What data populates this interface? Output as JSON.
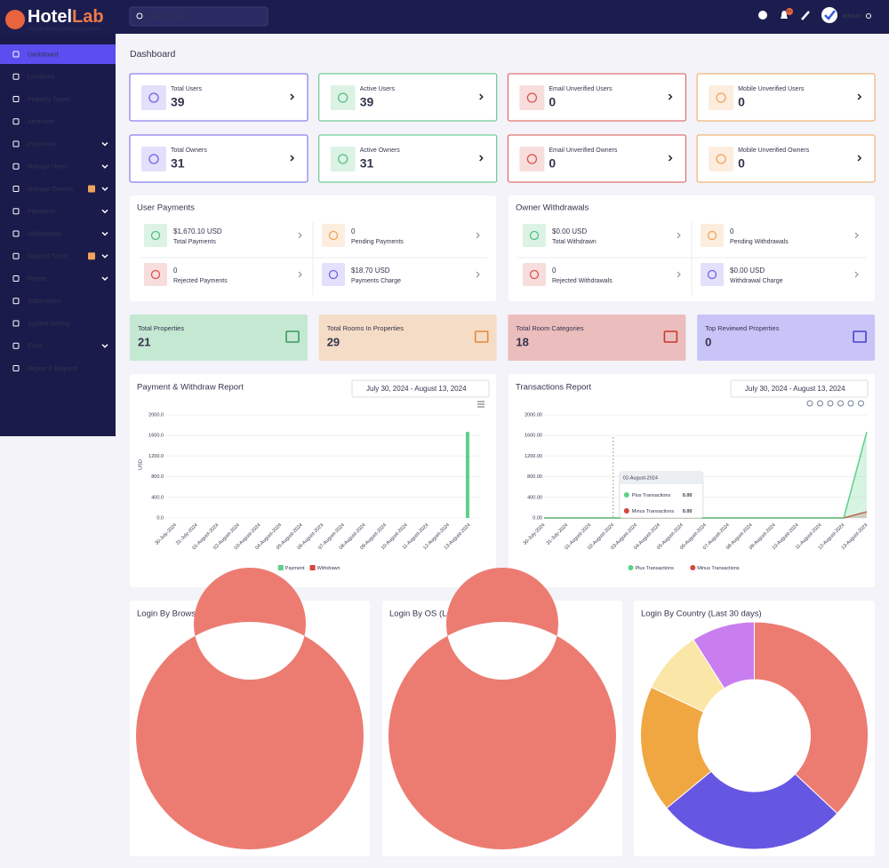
{
  "brand": {
    "name": [
      "Hotel",
      "Lab"
    ],
    "tagline": "ONLINE HOTEL BOOKING PLATFORM"
  },
  "header": {
    "search_placeholder": "Search here...",
    "notification_badge": "9+",
    "user": "admin"
  },
  "sidebar": [
    {
      "label": "Dashboard",
      "active": true
    },
    {
      "label": "Locations"
    },
    {
      "label": "Property Types"
    },
    {
      "label": "Amenities"
    },
    {
      "label": "Properties",
      "submenu": true
    },
    {
      "label": "Manage Users",
      "submenu": true
    },
    {
      "label": "Manage Owners",
      "submenu": true,
      "badge": true
    },
    {
      "label": "Payments",
      "submenu": true
    },
    {
      "label": "Withdrawals",
      "submenu": true
    },
    {
      "label": "Support Ticket",
      "submenu": true,
      "badge": true
    },
    {
      "label": "Report",
      "submenu": true
    },
    {
      "label": "Subscribers"
    },
    {
      "label": "System Setting"
    },
    {
      "label": "Extra",
      "submenu": true
    },
    {
      "label": "Report & Request"
    }
  ],
  "page_title": "Dashboard",
  "stat_cards": [
    {
      "label": "Total Users",
      "value": 39,
      "color": "#6f63e8"
    },
    {
      "label": "Active Users",
      "value": 39,
      "color": "#52c07f"
    },
    {
      "label": "Email Unverified Users",
      "value": 0,
      "color": "#d9534f"
    },
    {
      "label": "Mobile Unverified Users",
      "value": 0,
      "color": "#f0a35a"
    },
    {
      "label": "Total Owners",
      "value": 31,
      "color": "#6f63e8"
    },
    {
      "label": "Active Owners",
      "value": 31,
      "color": "#52c07f"
    },
    {
      "label": "Email Unverified Owners",
      "value": 0,
      "color": "#d9534f"
    },
    {
      "label": "Mobile Unverified Owners",
      "value": 0,
      "color": "#f0a35a"
    }
  ],
  "payment_panels": [
    {
      "title": "User Payments",
      "items": [
        {
          "value": "$1,670.10 USD",
          "label": "Total Payments",
          "color": "#52c07f"
        },
        {
          "value": 0,
          "label": "Pending Payments",
          "color": "#f0a35a"
        },
        {
          "value": 0,
          "label": "Rejected Payments",
          "color": "#d9534f"
        },
        {
          "value": "$18.70 USD",
          "label": "Payments Charge",
          "color": "#6f63e8"
        }
      ]
    },
    {
      "title": "Owner Withdrawals",
      "items": [
        {
          "value": "$0.00 USD",
          "label": "Total Withdrawn",
          "color": "#52c07f"
        },
        {
          "value": 0,
          "label": "Pending Withdrawals",
          "color": "#f0a35a"
        },
        {
          "value": 0,
          "label": "Rejected Withdrawals",
          "color": "#d9534f"
        },
        {
          "value": "$0.00 USD",
          "label": "Withdrawal Charge",
          "color": "#6f63e8"
        }
      ]
    }
  ],
  "property_cards": [
    {
      "label": "Total Properties",
      "value": 21,
      "bg": "#c4e8d1",
      "color": "#3c9a5f"
    },
    {
      "label": "Total Rooms In Properties",
      "value": 29,
      "bg": "#f5dcc6",
      "color": "#e8883a"
    },
    {
      "label": "Total Room Categories",
      "value": 18,
      "bg": "#ecbdbd",
      "color": "#c7372f"
    },
    {
      "label": "Top Reviewed Properties",
      "value": 0,
      "bg": "#c9c4f8",
      "color": "#4b3ec9"
    }
  ],
  "chart_data": [
    {
      "type": "bar",
      "title": "Payment & Withdraw Report",
      "date_range": "July 30, 2024 - August 13, 2024",
      "y_label": "USD",
      "categories": [
        "30-July-2024",
        "31-July-2024",
        "01-August-2024",
        "02-August-2024",
        "03-August-2024",
        "04-August-2024",
        "05-August-2024",
        "06-August-2024",
        "07-August-2024",
        "08-August-2024",
        "09-August-2024",
        "10-August-2024",
        "11-August-2024",
        "12-August-2024",
        "13-August-2024"
      ],
      "series": [
        {
          "name": "Payment",
          "color": "#5ed08a",
          "values": [
            0,
            0,
            0,
            0,
            0,
            0,
            0,
            0,
            0,
            0,
            0,
            0,
            0,
            0,
            1670.1
          ]
        },
        {
          "name": "Withdrawn",
          "color": "#d6453d",
          "values": [
            0,
            0,
            0,
            0,
            0,
            0,
            0,
            0,
            0,
            0,
            0,
            0,
            0,
            0,
            0
          ]
        }
      ],
      "ylim": [
        0,
        2000
      ],
      "yticks": [
        {
          "value": 0,
          "label": "0.0"
        },
        {
          "value": 400,
          "label": "400.0"
        },
        {
          "value": 800,
          "label": "800.0"
        },
        {
          "value": 1200,
          "label": "1200.0"
        },
        {
          "value": 1600,
          "label": "1600.0"
        },
        {
          "value": 2000,
          "label": "2000.0"
        }
      ]
    },
    {
      "type": "area",
      "title": "Transactions Report",
      "date_range": "July 30, 2024 - August 13, 2024",
      "categories": [
        "30-July-2024",
        "31-July-2024",
        "01-August-2024",
        "02-August-2024",
        "03-August-2024",
        "04-August-2024",
        "05-August-2024",
        "06-August-2024",
        "07-August-2024",
        "08-August-2024",
        "09-August-2024",
        "10-August-2024",
        "11-August-2024",
        "12-August-2024",
        "13-August-2024"
      ],
      "series": [
        {
          "name": "Plus Transactions",
          "color": "#5ed08a",
          "values": [
            0,
            0,
            0,
            0,
            0,
            0,
            0,
            0,
            0,
            0,
            0,
            0,
            0,
            0,
            1670.1
          ]
        },
        {
          "name": "Minus Transactions",
          "color": "#d6453d",
          "values": [
            0,
            0,
            0,
            0,
            0,
            0,
            0,
            0,
            0,
            0,
            0,
            0,
            0,
            0,
            120
          ]
        }
      ],
      "ylim": [
        0,
        2000
      ],
      "yticks": [
        {
          "value": 0,
          "label": "0.00"
        },
        {
          "value": 400,
          "label": "400.00"
        },
        {
          "value": 800,
          "label": "800.00"
        },
        {
          "value": 1200,
          "label": "1200.00"
        },
        {
          "value": 1600,
          "label": "1600.00"
        },
        {
          "value": 2000,
          "label": "2000.00"
        }
      ],
      "tooltip": {
        "index": 3,
        "title": "02-August-2024",
        "items": [
          {
            "name": "Plus Transactions",
            "value": 0,
            "label": "0.00"
          },
          {
            "name": "Minus Transactions",
            "value": 0,
            "label": "0.00"
          }
        ]
      }
    },
    {
      "type": "donut",
      "title": "Login By Browser (Last 30 days)",
      "values": [
        100
      ],
      "colors": [
        "#ec7c72"
      ]
    },
    {
      "type": "donut",
      "title": "Login By OS (Last 30 days)",
      "values": [
        100
      ],
      "colors": [
        "#ec7c72"
      ]
    },
    {
      "type": "donut",
      "title": "Login By Country (Last 30 days)",
      "values": [
        37,
        27,
        18,
        9,
        9
      ],
      "colors": [
        "#ec7c72",
        "#6657e3",
        "#f0a742",
        "#fae6a6",
        "#c97ef0"
      ]
    }
  ]
}
